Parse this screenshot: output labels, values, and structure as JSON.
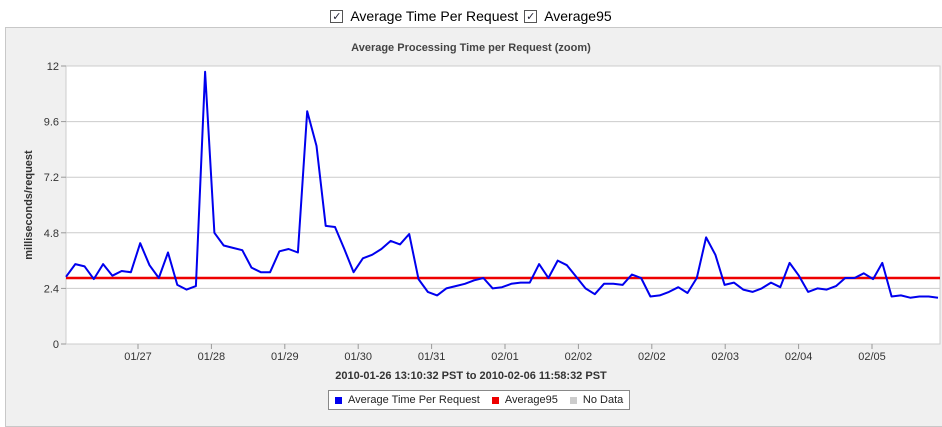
{
  "controls": {
    "checkbox1": {
      "label": "Average Time Per Request",
      "checked": true
    },
    "checkbox2": {
      "label": "Average95",
      "checked": true
    }
  },
  "legend": [
    {
      "label": "Average Time Per Request",
      "color": "#0000ee"
    },
    {
      "label": "Average95",
      "color": "#ee0000"
    },
    {
      "label": "No Data",
      "color": "#cccccc"
    }
  ],
  "chart_data": {
    "type": "line",
    "title": "Average Processing Time per Request (zoom)",
    "ylabel": "milliseconds/request",
    "xlabel": "2010-01-26 13:10:32 PST to 2010-02-06 11:58:32 PST",
    "ylim": [
      0,
      12
    ],
    "yticks": [
      "0",
      "2.4",
      "4.8",
      "7.2",
      "9.6",
      "12"
    ],
    "xticks": [
      "01/27",
      "01/28",
      "01/29",
      "01/30",
      "01/31",
      "02/01",
      "02/02",
      "02/02",
      "02/03",
      "02/04",
      "02/05"
    ],
    "grid": true,
    "reference_line": {
      "name": "Average95",
      "value": 2.85
    },
    "series": [
      {
        "name": "Average Time Per Request",
        "color": "#0000ee",
        "values": [
          2.9,
          3.45,
          3.35,
          2.8,
          3.45,
          2.95,
          3.15,
          3.1,
          4.35,
          3.4,
          2.85,
          3.95,
          2.55,
          2.35,
          2.5,
          11.75,
          4.8,
          4.25,
          4.15,
          4.05,
          3.3,
          3.1,
          3.1,
          4.0,
          4.1,
          3.95,
          10.05,
          8.55,
          5.1,
          5.05,
          4.1,
          3.1,
          3.7,
          3.85,
          4.1,
          4.45,
          4.3,
          4.75,
          2.8,
          2.25,
          2.1,
          2.4,
          2.5,
          2.6,
          2.75,
          2.85,
          2.4,
          2.45,
          2.6,
          2.65,
          2.65,
          3.45,
          2.85,
          3.6,
          3.4,
          2.9,
          2.4,
          2.15,
          2.6,
          2.6,
          2.55,
          3.0,
          2.85,
          2.05,
          2.1,
          2.25,
          2.45,
          2.2,
          2.85,
          4.6,
          3.85,
          2.55,
          2.65,
          2.35,
          2.25,
          2.4,
          2.65,
          2.45,
          3.5,
          2.95,
          2.25,
          2.4,
          2.35,
          2.5,
          2.85,
          2.85,
          3.05,
          2.8,
          3.5,
          2.05,
          2.1,
          2.0,
          2.05,
          2.05,
          2.0
        ]
      }
    ]
  }
}
